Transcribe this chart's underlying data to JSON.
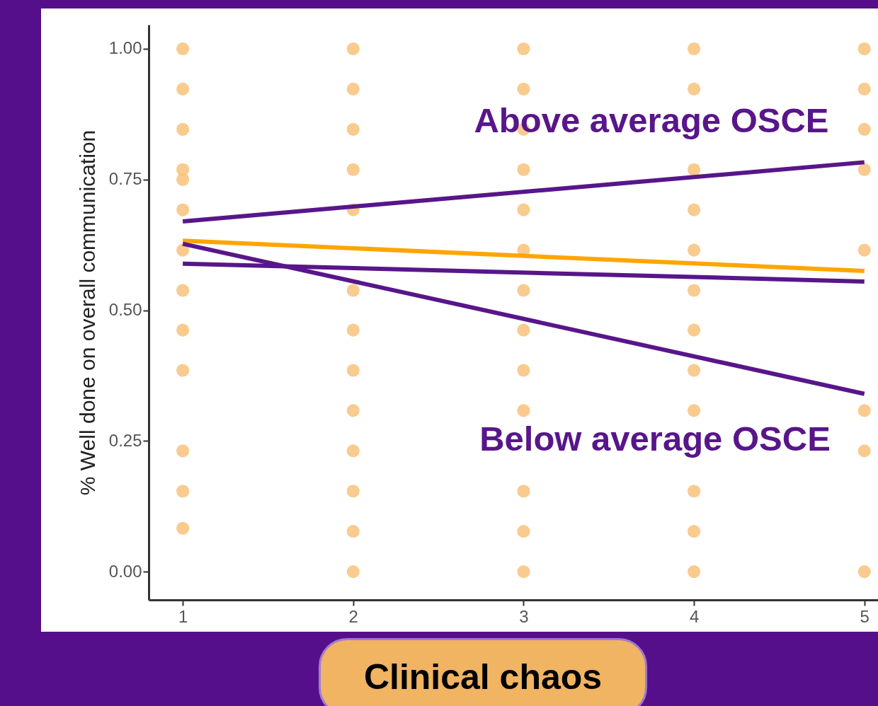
{
  "chart_data": {
    "type": "scatter",
    "xlabel": "Clinical chaos",
    "ylabel": "% Well done on overall communication",
    "xlim": [
      0.8,
      5.08
    ],
    "xticks": [
      1,
      2,
      3,
      4,
      5
    ],
    "ylim": [
      -0.054,
      1.046
    ],
    "yticks": [
      {
        "value": 0,
        "label": "0.00"
      },
      {
        "value": 0.25,
        "label": "0.25"
      },
      {
        "value": 0.5,
        "label": "0.50"
      },
      {
        "value": 0.75,
        "label": "0.75"
      },
      {
        "value": 1,
        "label": "1.00"
      }
    ],
    "series": [
      {
        "color": "#f8c27a",
        "x": [
          1,
          1,
          1,
          1,
          1,
          1,
          1,
          1,
          1,
          1,
          1,
          1,
          1,
          2,
          2,
          2,
          2,
          2,
          2,
          2,
          2,
          2,
          2,
          2,
          2,
          2,
          3,
          3,
          3,
          3,
          3,
          3,
          3,
          3,
          3,
          3,
          3,
          3,
          3,
          4,
          4,
          4,
          4,
          4,
          4,
          4,
          4,
          4,
          4,
          4,
          4,
          5,
          5,
          5,
          5,
          5,
          5,
          5,
          5
        ],
        "values": [
          1,
          0.923,
          0.846,
          0.769,
          0.75,
          0.692,
          0.615,
          0.538,
          0.462,
          0.385,
          0.231,
          0.154,
          0.083,
          1,
          0.923,
          0.846,
          0.769,
          0.692,
          0.538,
          0.462,
          0.385,
          0.308,
          0.231,
          0.154,
          0.077,
          0,
          1,
          0.923,
          0.846,
          0.769,
          0.692,
          0.615,
          0.538,
          0.462,
          0.385,
          0.308,
          0.154,
          0.077,
          0,
          1,
          0.923,
          0.769,
          0.692,
          0.615,
          0.538,
          0.462,
          0.385,
          0.308,
          0.154,
          0.077,
          0,
          1,
          0.923,
          0.846,
          0.769,
          0.615,
          0.308,
          0.231,
          0
        ]
      },
      {
        "type": "line",
        "color": "#ffa500",
        "x": [
          1,
          5
        ],
        "values": [
          0.633,
          0.575
        ]
      },
      {
        "type": "line",
        "color": "#58168a",
        "x": [
          1,
          5
        ],
        "values": [
          0.67,
          0.783
        ]
      },
      {
        "type": "line",
        "color": "#58168a",
        "x": [
          1,
          5
        ],
        "values": [
          0.589,
          0.555
        ]
      },
      {
        "type": "line",
        "color": "#58168a",
        "x": [
          1,
          5
        ],
        "values": [
          0.627,
          0.34
        ]
      }
    ],
    "annotations": [
      "Above average OSCE",
      "Below average OSCE"
    ]
  }
}
